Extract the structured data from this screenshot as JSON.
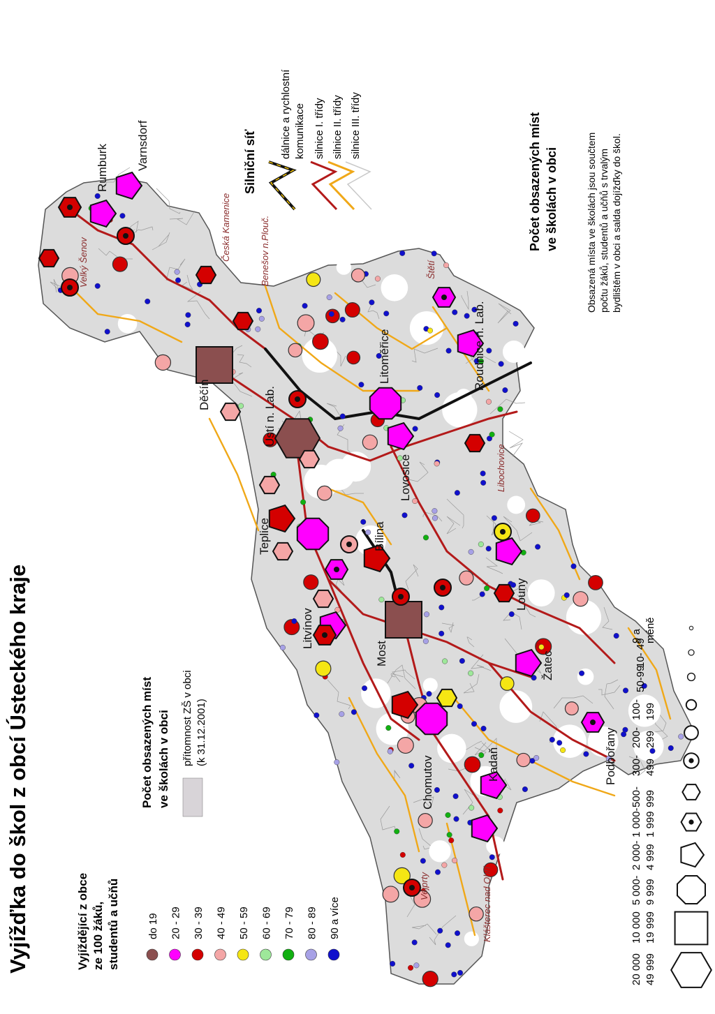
{
  "title": "Vyjížďka do škol z obcí Ústeckého kraje",
  "legend_commute": {
    "heading": [
      "Vyjíždějící z obce",
      "ze 100 žáků,",
      "studentů a učňů"
    ],
    "classes": [
      {
        "label": "do 19",
        "color": "#8b4f4f"
      },
      {
        "label": "20 - 29",
        "color": "#ff00ff"
      },
      {
        "label": "30 - 39",
        "color": "#d40000"
      },
      {
        "label": "40 - 49",
        "color": "#f4a6a6"
      },
      {
        "label": "50 - 59",
        "color": "#f5e614"
      },
      {
        "label": "60 - 69",
        "color": "#9ee89a"
      },
      {
        "label": "70 - 79",
        "color": "#12b012"
      },
      {
        "label": "80 - 89",
        "color": "#a7a1e6"
      },
      {
        "label": "90 a více",
        "color": "#1010cc"
      }
    ]
  },
  "legend_presence": {
    "heading": [
      "Počet obsazených míst",
      "ve školách v obci"
    ],
    "item": [
      "přítomnost ZŠ v obci",
      "(k 31.12.2001)"
    ],
    "color": "#d8d4d8"
  },
  "legend_roads": {
    "heading": "Silniční síť",
    "items": [
      {
        "label": [
          "dálnice a rychlostní",
          "komunikace"
        ],
        "color": "#111111"
      },
      {
        "label": [
          "silnice I. třídy"
        ],
        "color": "#b31a1a"
      },
      {
        "label": [
          "silnice II. třídy"
        ],
        "color": "#f0a818"
      },
      {
        "label": [
          "silnice III. třídy"
        ],
        "color": "#c8c8c8"
      }
    ]
  },
  "legend_places": {
    "heading": [
      "Počet obsazených míst",
      "ve školách v obci"
    ],
    "note": [
      "Obsazená místa ve školách jsou součtem",
      "počtu žáků, studentů a učňů s trvalým",
      "bydlištěm v obci a salda dojížďky do škol."
    ],
    "classes": [
      {
        "label": [
          "20 000",
          "49 999"
        ],
        "symbol": "hexagon-large"
      },
      {
        "label": [
          "10 000",
          "19 999"
        ],
        "symbol": "square"
      },
      {
        "label": [
          "5 000-",
          "9 999"
        ],
        "symbol": "octagon"
      },
      {
        "label": [
          "2 000-",
          "4 999"
        ],
        "symbol": "pentagon"
      },
      {
        "label": [
          "1 000-",
          "1 999"
        ],
        "symbol": "hexagon-dot"
      },
      {
        "label": [
          "500-",
          "999"
        ],
        "symbol": "hexagon-small"
      },
      {
        "label": [
          "300-",
          "499"
        ],
        "symbol": "circle-dot"
      },
      {
        "label": [
          "200-",
          "299"
        ],
        "symbol": "circle-large"
      },
      {
        "label": [
          "100-",
          "199"
        ],
        "symbol": "circle-medium"
      },
      {
        "label": [
          "50-99"
        ],
        "symbol": "circle-small"
      },
      {
        "label": [
          "10- 49"
        ],
        "symbol": "circle-xsmall"
      },
      {
        "label": [
          "9 a",
          "méně"
        ],
        "symbol": "circle-tiny"
      }
    ]
  },
  "map_labels": {
    "towns": [
      "Rumburk",
      "Varnsdorf",
      "Děčín",
      "Ústí n. Lab.",
      "Litoměřice",
      "Roudnice n. Lab.",
      "Lovosice",
      "Bílina",
      "Teplice",
      "Litvínov",
      "Most",
      "Louny",
      "Žatec",
      "Chomutov",
      "Kadaň",
      "Podbořany"
    ],
    "small_towns": [
      "Velký Šenov",
      "Česká Kamenice",
      "Benešov n.Plouč.",
      "Štětí",
      "Libochovice",
      "Vejprty",
      "Klášterec nad Ohří"
    ]
  }
}
